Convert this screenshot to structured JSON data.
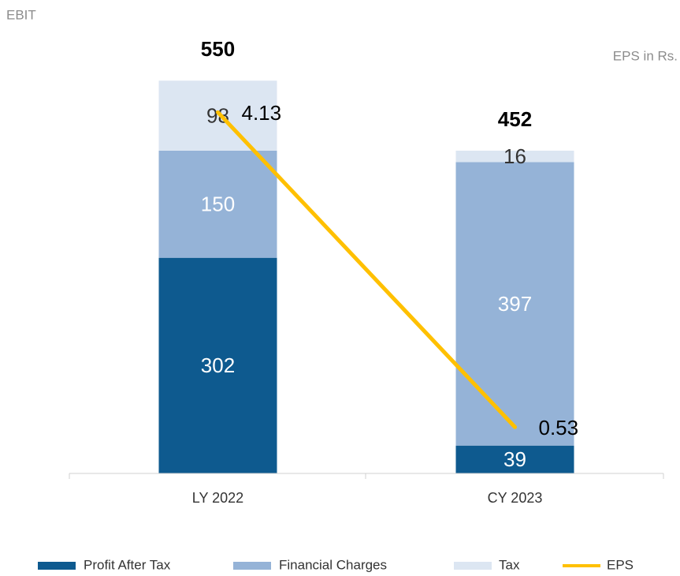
{
  "chart_data": {
    "type": "bar",
    "stacked": true,
    "y_axis_label": "EBIT",
    "y2_axis_label": "EPS in Rs.",
    "categories": [
      "LY 2022",
      "CY 2023"
    ],
    "ylim": [
      0,
      600
    ],
    "y2lim": [
      0,
      4.9
    ],
    "series": [
      {
        "name": "Profit After Tax",
        "type": "bar",
        "color": "#0e5a8f",
        "label_color": "#ffffff",
        "values": [
          302,
          39
        ]
      },
      {
        "name": "Financial Charges",
        "type": "bar",
        "color": "#95b3d7",
        "label_color": "#ffffff",
        "values": [
          150,
          397
        ]
      },
      {
        "name": "Tax",
        "type": "bar",
        "color": "#dce6f2",
        "label_color": "#333333",
        "values": [
          98,
          16
        ]
      },
      {
        "name": "EPS",
        "type": "line",
        "axis": "y2",
        "color": "#ffc000",
        "label_color": "#000000",
        "values": [
          4.13,
          0.53
        ]
      }
    ],
    "totals": [
      550,
      452
    ],
    "legend": "bottom"
  }
}
